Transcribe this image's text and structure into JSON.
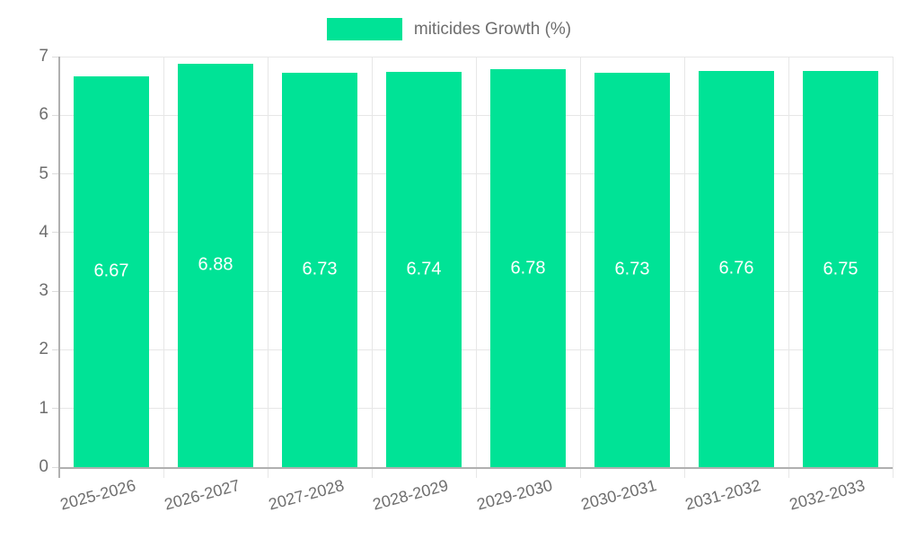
{
  "chart_data": {
    "type": "bar",
    "title": "",
    "categories": [
      "2025-2026",
      "2026-2027",
      "2027-2028",
      "2028-2029",
      "2029-2030",
      "2030-2031",
      "2031-2032",
      "2032-2033"
    ],
    "series": [
      {
        "name": "miticides Growth (%)",
        "values": [
          6.67,
          6.88,
          6.73,
          6.74,
          6.78,
          6.73,
          6.76,
          6.75
        ]
      }
    ],
    "value_labels": [
      "6.67",
      "6.88",
      "6.73",
      "6.74",
      "6.78",
      "6.73",
      "6.76",
      "6.75"
    ],
    "ylim": [
      0,
      7
    ],
    "yticks": [
      0,
      1,
      2,
      3,
      4,
      5,
      6,
      7
    ],
    "xlabel": "",
    "ylabel": "",
    "grid": "on",
    "legend_position": "top",
    "colors": {
      "bar": "#00E396",
      "value_label": "#ffffff",
      "axis_label": "#6e6e6e",
      "legend_label": "#6e6e6e",
      "gridline": "#e7e7e7",
      "axis_line": "#b0b0b0"
    }
  }
}
